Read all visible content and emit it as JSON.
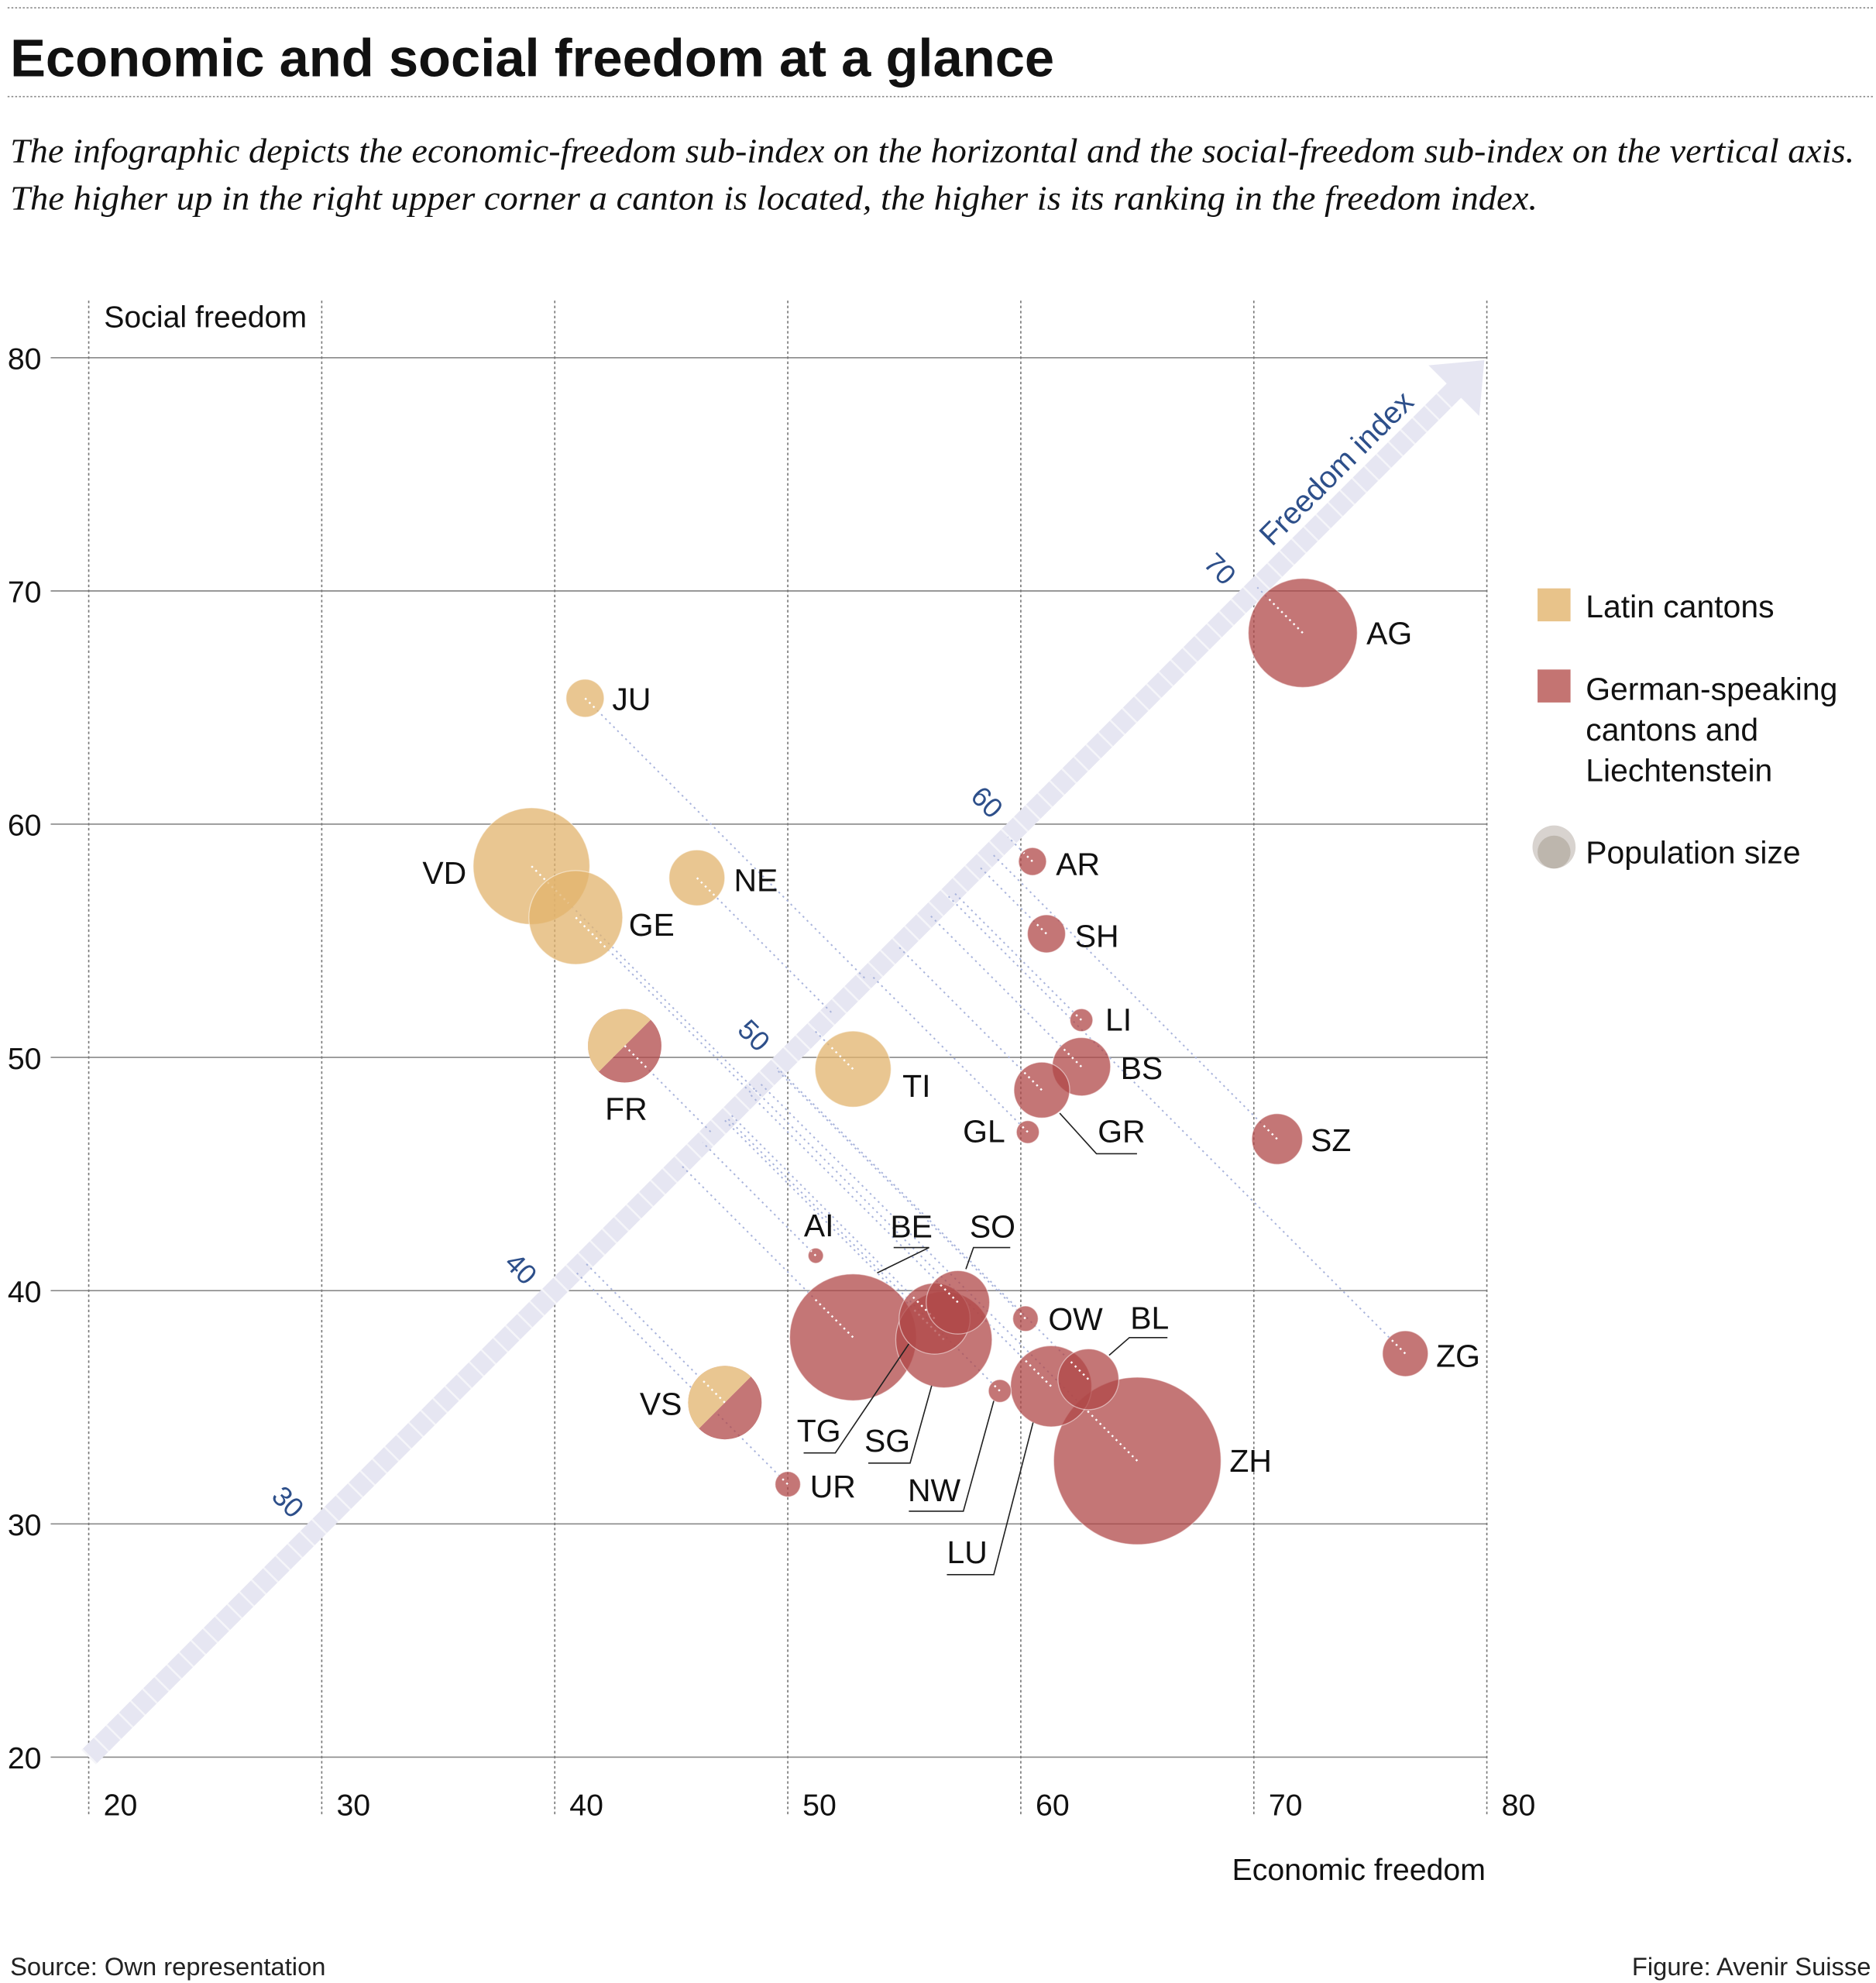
{
  "title": "Economic and social freedom at a glance",
  "subtitle_lines": [
    "The infographic depicts the economic-freedom sub-index on the horizontal and the social-freedom sub-index on the vertical axis.",
    "The higher up in the right upper corner a canton is located, the higher is its ranking in the freedom index."
  ],
  "footer": {
    "source": "Source: Own representation",
    "figure": "Figure: Avenir Suisse"
  },
  "chart_data": {
    "type": "scatter",
    "bubble": true,
    "xlabel": "Economic freedom",
    "ylabel": "Social freedom",
    "xlim": [
      20,
      80
    ],
    "ylim": [
      20,
      80
    ],
    "x_ticks": [
      "20",
      "30",
      "40",
      "50",
      "60",
      "70",
      "80"
    ],
    "y_ticks": [
      "20",
      "30",
      "40",
      "50",
      "60",
      "70",
      "80"
    ],
    "grid": true,
    "diagonal": {
      "label": "Freedom index",
      "ticks": [
        "30",
        "40",
        "50",
        "60",
        "70"
      ],
      "color": "#e6e6f2",
      "label_color": "#2d4f8a"
    },
    "legend": {
      "placement": "right",
      "items": [
        {
          "label_lines": [
            "Latin cantons"
          ],
          "color": "#e8c38a"
        },
        {
          "label_lines": [
            "German-speaking",
            "cantons and",
            "Liechtenstein"
          ],
          "color": "#c47472"
        },
        {
          "label_lines": [
            "Population size"
          ],
          "color": "#c9c3bc"
        }
      ]
    },
    "colors": {
      "latin": "#e2b36c",
      "german": "#b04848",
      "mixed": "both"
    },
    "series": [
      {
        "code": "AG",
        "group": "german",
        "x": 72.1,
        "y": 68.2,
        "size": 43
      },
      {
        "code": "JU",
        "group": "latin",
        "x": 41.3,
        "y": 65.4,
        "size": 15
      },
      {
        "code": "VD",
        "group": "latin",
        "x": 39.0,
        "y": 58.2,
        "size": 46
      },
      {
        "code": "GE",
        "group": "latin",
        "x": 40.9,
        "y": 56.0,
        "size": 37
      },
      {
        "code": "NE",
        "group": "latin",
        "x": 46.1,
        "y": 57.7,
        "size": 22
      },
      {
        "code": "FR",
        "group": "mixed",
        "x": 43.0,
        "y": 50.5,
        "size": 29
      },
      {
        "code": "TI",
        "group": "latin",
        "x": 52.8,
        "y": 49.5,
        "size": 30
      },
      {
        "code": "AR",
        "group": "german",
        "x": 60.5,
        "y": 58.4,
        "size": 11
      },
      {
        "code": "SH",
        "group": "german",
        "x": 61.1,
        "y": 55.3,
        "size": 15
      },
      {
        "code": "LI",
        "group": "german",
        "x": 62.6,
        "y": 51.6,
        "size": 9
      },
      {
        "code": "BS",
        "group": "german",
        "x": 62.6,
        "y": 49.6,
        "size": 23
      },
      {
        "code": "GR",
        "group": "german",
        "x": 60.9,
        "y": 48.6,
        "size": 22
      },
      {
        "code": "GL",
        "group": "german",
        "x": 60.3,
        "y": 46.8,
        "size": 9
      },
      {
        "code": "SZ",
        "group": "german",
        "x": 71.0,
        "y": 46.5,
        "size": 20
      },
      {
        "code": "AI",
        "group": "german",
        "x": 51.2,
        "y": 41.5,
        "size": 6
      },
      {
        "code": "BE",
        "group": "german",
        "x": 52.8,
        "y": 38.0,
        "size": 50
      },
      {
        "code": "SO",
        "group": "german",
        "x": 57.3,
        "y": 39.5,
        "size": 25
      },
      {
        "code": "SG",
        "group": "german",
        "x": 56.7,
        "y": 37.9,
        "size": 38
      },
      {
        "code": "TG",
        "group": "german",
        "x": 56.3,
        "y": 38.8,
        "size": 28
      },
      {
        "code": "OW",
        "group": "german",
        "x": 60.2,
        "y": 38.8,
        "size": 10
      },
      {
        "code": "LU",
        "group": "german",
        "x": 61.3,
        "y": 35.9,
        "size": 32
      },
      {
        "code": "BL",
        "group": "german",
        "x": 62.9,
        "y": 36.2,
        "size": 24
      },
      {
        "code": "NW",
        "group": "german",
        "x": 59.1,
        "y": 35.7,
        "size": 9
      },
      {
        "code": "ZH",
        "group": "german",
        "x": 65.0,
        "y": 32.7,
        "size": 66
      },
      {
        "code": "ZG",
        "group": "german",
        "x": 76.5,
        "y": 37.3,
        "size": 18
      },
      {
        "code": "VS",
        "group": "mixed",
        "x": 47.3,
        "y": 35.2,
        "size": 29
      },
      {
        "code": "UR",
        "group": "german",
        "x": 50.0,
        "y": 31.7,
        "size": 10
      }
    ]
  }
}
